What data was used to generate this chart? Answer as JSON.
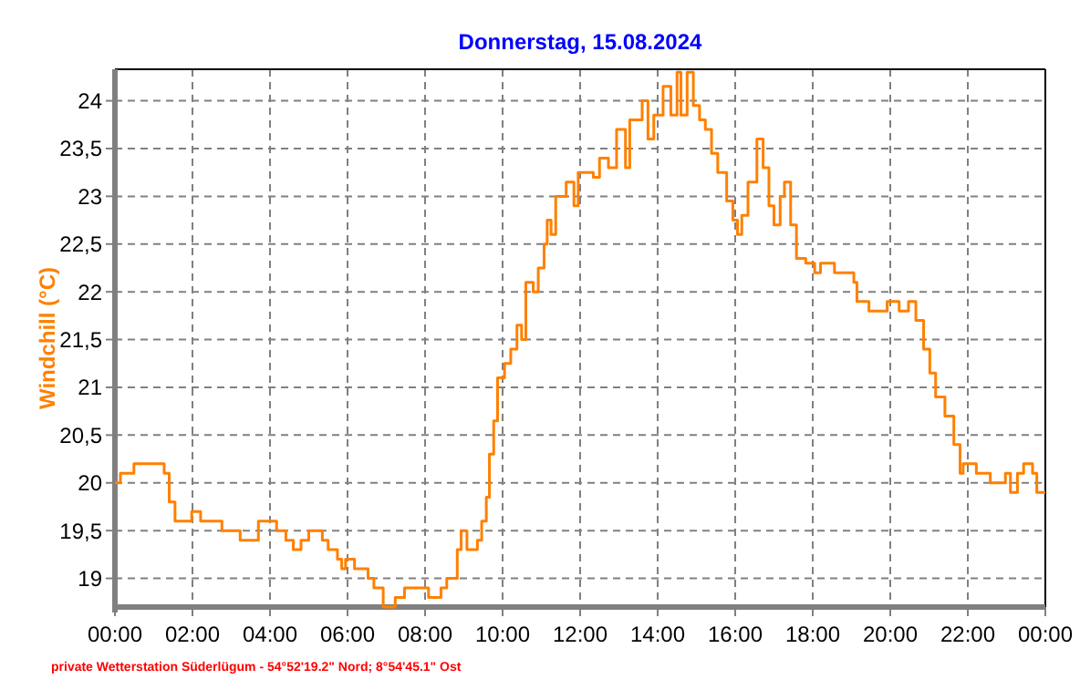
{
  "chart_data": {
    "type": "step",
    "title": "Donnerstag, 15.08.2024",
    "ylabel": "Windchill  (°C)",
    "annotations": [
      "private Wetterstation Süderlügum - 54°52'19.2\" Nord; 8°54'45.1\" Ost"
    ],
    "series": [
      {
        "color": "#ff8000",
        "x": [
          0,
          0.14,
          0.49,
          1.27,
          1.4,
          1.55,
          1.98,
          2.21,
          2.76,
          3.23,
          3.7,
          4.17,
          4.41,
          4.6,
          4.8,
          5.0,
          5.35,
          5.5,
          5.74,
          5.85,
          5.95,
          6.18,
          6.53,
          6.68,
          6.92,
          7.23,
          7.47,
          8.09,
          8.41,
          8.56,
          8.77,
          8.83,
          8.93,
          9.08,
          9.35,
          9.46,
          9.58,
          9.66,
          9.77,
          9.87,
          10.05,
          10.21,
          10.37,
          10.49,
          10.6,
          10.79,
          10.92,
          11.07,
          11.15,
          11.25,
          11.37,
          11.64,
          11.84,
          11.95,
          12.34,
          12.5,
          12.73,
          12.94,
          13.17,
          13.28,
          13.6,
          13.75,
          13.9,
          14.14,
          14.34,
          14.5,
          14.6,
          14.76,
          14.92,
          15.08,
          15.23,
          15.39,
          15.55,
          15.78,
          15.94,
          16.06,
          16.17,
          16.33,
          16.56,
          16.72,
          16.87,
          17.0,
          17.16,
          17.27,
          17.43,
          17.58,
          17.82,
          18.05,
          18.2,
          18.56,
          19.06,
          19.14,
          19.45,
          19.92,
          20.23,
          20.47,
          20.66,
          20.86,
          21.02,
          21.17,
          21.41,
          21.64,
          21.8,
          21.88,
          22.22,
          22.58,
          22.97,
          23.1,
          23.28,
          23.44,
          23.67,
          23.78,
          24
        ],
        "values": [
          20.0,
          20.1,
          20.2,
          20.1,
          19.8,
          19.6,
          19.7,
          19.6,
          19.5,
          19.4,
          19.6,
          19.5,
          19.4,
          19.3,
          19.4,
          19.5,
          19.4,
          19.3,
          19.2,
          19.1,
          19.2,
          19.1,
          19.0,
          18.9,
          18.7,
          18.8,
          18.9,
          18.8,
          18.9,
          19.0,
          19.0,
          19.3,
          19.5,
          19.3,
          19.4,
          19.6,
          19.85,
          20.3,
          20.65,
          21.1,
          21.25,
          21.4,
          21.65,
          21.5,
          22.1,
          22.0,
          22.25,
          22.5,
          22.75,
          22.6,
          23.0,
          23.15,
          22.9,
          23.25,
          23.2,
          23.4,
          23.3,
          23.7,
          23.3,
          23.8,
          24.0,
          23.6,
          23.85,
          24.15,
          23.85,
          24.3,
          23.85,
          24.3,
          23.95,
          23.8,
          23.7,
          23.45,
          23.25,
          22.95,
          22.75,
          22.6,
          22.8,
          23.15,
          23.6,
          23.3,
          22.9,
          22.7,
          23.0,
          23.15,
          22.7,
          22.35,
          22.3,
          22.2,
          22.3,
          22.2,
          22.1,
          21.9,
          21.8,
          21.9,
          21.8,
          21.9,
          21.7,
          21.4,
          21.15,
          20.9,
          20.7,
          20.4,
          20.1,
          20.2,
          20.1,
          20.0,
          20.1,
          19.9,
          20.1,
          20.2,
          20.1,
          19.9,
          19.9
        ]
      }
    ],
    "xlim": [
      0,
      24
    ],
    "xticks": [
      {
        "value": 0,
        "label": "00:00"
      },
      {
        "value": 2,
        "label": "02:00"
      },
      {
        "value": 4,
        "label": "04:00"
      },
      {
        "value": 6,
        "label": "06:00"
      },
      {
        "value": 8,
        "label": "08:00"
      },
      {
        "value": 10,
        "label": "10:00"
      },
      {
        "value": 12,
        "label": "12:00"
      },
      {
        "value": 14,
        "label": "14:00"
      },
      {
        "value": 16,
        "label": "16:00"
      },
      {
        "value": 18,
        "label": "18:00"
      },
      {
        "value": 20,
        "label": "20:00"
      },
      {
        "value": 22,
        "label": "22:00"
      },
      {
        "value": 24,
        "label": "00:00"
      }
    ],
    "ylim": [
      18.7,
      24.33
    ],
    "yticks": [
      19,
      {
        "value": 19.5,
        "label": "19,5"
      },
      20,
      {
        "value": 20.5,
        "label": "20,5"
      },
      21,
      {
        "value": 21.5,
        "label": "21,5"
      },
      22,
      {
        "value": 22.5,
        "label": "22,5"
      },
      23,
      {
        "value": 23.5,
        "label": "23,5"
      },
      24
    ],
    "grid": true,
    "line_style": "solid",
    "marker": "none"
  }
}
